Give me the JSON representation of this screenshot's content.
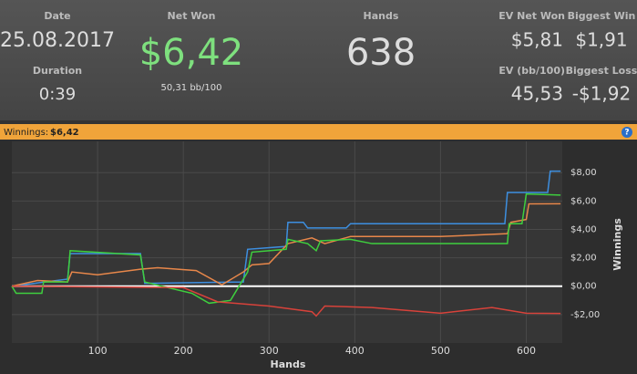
{
  "header": {
    "stats": [
      {
        "label": "Date",
        "value": "25.08.2017"
      },
      {
        "label": "Duration",
        "value": "0:39"
      },
      {
        "label": "Net Won",
        "value": "$6,42"
      },
      {
        "label": "Hands",
        "value": "638"
      },
      {
        "label": "EV Net Won",
        "value": "$5,81"
      },
      {
        "label": "Biggest Win",
        "value": "$1,91"
      },
      {
        "label": "EV (bb/100)",
        "value": "45,53"
      },
      {
        "label": "Biggest Loss",
        "value": "-$1,92"
      }
    ],
    "net_won_rate": "50,31 bb/100"
  },
  "bar": {
    "title": "Winnings:",
    "value": "$6,42",
    "help": "?"
  },
  "chart_data": {
    "type": "line",
    "x_label": "Hands",
    "y_label": "Winnings",
    "xlim": [
      0,
      642
    ],
    "xticks": [
      100,
      200,
      300,
      400,
      500,
      600
    ],
    "ylim": [
      -4,
      10.2
    ],
    "yticks": [
      {
        "value": -2,
        "label": "-$2,00"
      },
      {
        "value": 0,
        "label": "$0,00"
      },
      {
        "value": 2,
        "label": "$2,00"
      },
      {
        "value": 4,
        "label": "$4,00"
      },
      {
        "value": 6,
        "label": "$6,00"
      },
      {
        "value": 8,
        "label": "$8,00"
      }
    ],
    "grid": true,
    "series": [
      {
        "color": "#3d8fe0",
        "x": [
          0,
          65,
          68,
          150,
          155,
          270,
          275,
          320,
          322,
          340,
          345,
          390,
          395,
          575,
          578,
          625,
          628,
          640
        ],
        "values": [
          0,
          0.5,
          2.3,
          2.3,
          0.2,
          0.3,
          2.6,
          2.8,
          4.5,
          4.5,
          4.1,
          4.1,
          4.4,
          4.4,
          6.6,
          6.6,
          8.1,
          8.1
        ]
      },
      {
        "color": "#e8874a",
        "x": [
          0,
          30,
          65,
          70,
          100,
          150,
          170,
          215,
          245,
          270,
          280,
          300,
          322,
          350,
          365,
          395,
          500,
          578,
          582,
          600,
          603,
          640
        ],
        "values": [
          0,
          0.4,
          0.3,
          1.0,
          0.8,
          1.2,
          1.3,
          1.1,
          0.1,
          1.0,
          1.5,
          1.6,
          3.0,
          3.4,
          3.0,
          3.5,
          3.5,
          3.7,
          4.5,
          4.7,
          5.8,
          5.81
        ]
      },
      {
        "color": "#3ecf3e",
        "x": [
          0,
          5,
          35,
          37,
          65,
          68,
          150,
          155,
          175,
          210,
          230,
          255,
          275,
          280,
          320,
          322,
          345,
          355,
          360,
          395,
          420,
          500,
          578,
          580,
          595,
          600,
          640
        ],
        "values": [
          0,
          -0.5,
          -0.5,
          0.3,
          0.3,
          2.5,
          2.2,
          0.3,
          0,
          -0.5,
          -1.2,
          -1,
          1,
          2.4,
          2.6,
          3.3,
          3.0,
          2.5,
          3.2,
          3.3,
          3.0,
          3.0,
          3.0,
          4.4,
          4.4,
          6.5,
          6.42
        ]
      },
      {
        "color": "#d8423a",
        "x": [
          0,
          200,
          240,
          300,
          350,
          355,
          365,
          420,
          500,
          560,
          600,
          640
        ],
        "values": [
          0,
          -0.1,
          -1.1,
          -1.4,
          -1.8,
          -2.1,
          -1.4,
          -1.5,
          -1.9,
          -1.5,
          -1.9,
          -1.92
        ]
      }
    ]
  }
}
